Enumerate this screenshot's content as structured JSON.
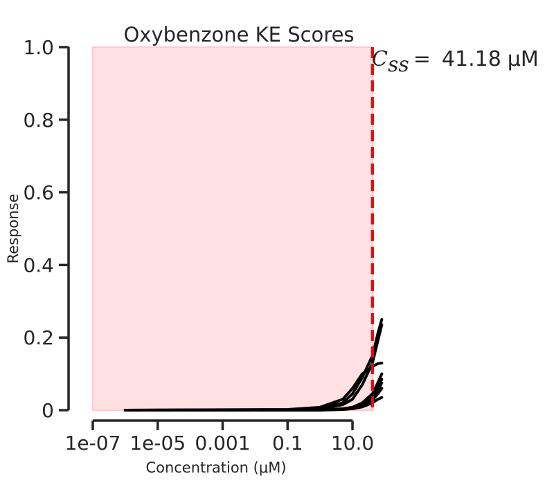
{
  "chart_data": {
    "type": "line",
    "title": "Oxybenzone KE Scores",
    "xlabel": "Concentration (μM)",
    "ylabel": "Response",
    "xscale": "log",
    "xlim": [
      1e-07,
      60
    ],
    "ylim": [
      0,
      1.0
    ],
    "x_ticks": [
      1e-07,
      1e-05,
      0.001,
      0.1,
      10.0
    ],
    "x_tick_labels": [
      "1e-07",
      "1e-05",
      "0.001",
      "0.1",
      "10.0"
    ],
    "y_ticks": [
      0,
      0.2,
      0.4,
      0.6,
      0.8,
      1.0
    ],
    "y_tick_labels": [
      "0",
      "0.2",
      "0.4",
      "0.6",
      "0.8",
      "1.0"
    ],
    "shaded_region": {
      "x": [
        1e-07,
        41.18
      ],
      "color": "#ffe1e4"
    },
    "reference_line": {
      "x": 41.18,
      "color": "#ff0000",
      "style": "dashed"
    },
    "annotation": {
      "symbol": "C",
      "subscript": "ss",
      "equals": "=",
      "value": "41.18",
      "unit": "μM"
    },
    "line_color": "#000000",
    "series": [
      {
        "x": [
          1e-06,
          0.1,
          1,
          5,
          10,
          20,
          41.18,
          60,
          80
        ],
        "values": [
          0,
          0.001,
          0.005,
          0.02,
          0.045,
          0.09,
          0.15,
          0.21,
          0.25
        ]
      },
      {
        "x": [
          1e-06,
          0.1,
          1,
          5,
          10,
          20,
          41.18,
          60,
          80
        ],
        "values": [
          0,
          0.001,
          0.004,
          0.015,
          0.03,
          0.07,
          0.13,
          0.19,
          0.235
        ]
      },
      {
        "x": [
          1e-06,
          0.1,
          1,
          5,
          10,
          20,
          41.18,
          60,
          80
        ],
        "values": [
          0,
          0.002,
          0.008,
          0.03,
          0.06,
          0.1,
          0.12,
          0.128,
          0.13
        ]
      },
      {
        "x": [
          1e-06,
          0.1,
          1,
          5,
          10,
          20,
          41.18,
          60,
          80
        ],
        "values": [
          0,
          0,
          0.001,
          0.004,
          0.008,
          0.02,
          0.045,
          0.075,
          0.1
        ]
      },
      {
        "x": [
          1e-06,
          0.1,
          1,
          5,
          10,
          20,
          41.18,
          60,
          80
        ],
        "values": [
          0,
          0,
          0.001,
          0.003,
          0.007,
          0.016,
          0.04,
          0.062,
          0.085
        ]
      },
      {
        "x": [
          1e-06,
          0.1,
          1,
          5,
          10,
          20,
          41.18,
          60,
          80
        ],
        "values": [
          0,
          0,
          0.001,
          0.003,
          0.006,
          0.014,
          0.032,
          0.055,
          0.075
        ]
      },
      {
        "x": [
          1e-06,
          0.1,
          1,
          5,
          10,
          20,
          41.18,
          60,
          80
        ],
        "values": [
          0,
          0,
          0.001,
          0.002,
          0.005,
          0.012,
          0.028,
          0.045,
          0.06
        ]
      },
      {
        "x": [
          1e-06,
          0.1,
          1,
          5,
          10,
          20,
          41.18,
          60,
          80
        ],
        "values": [
          0,
          0,
          0,
          0.002,
          0.004,
          0.009,
          0.02,
          0.03,
          0.035
        ]
      }
    ]
  }
}
